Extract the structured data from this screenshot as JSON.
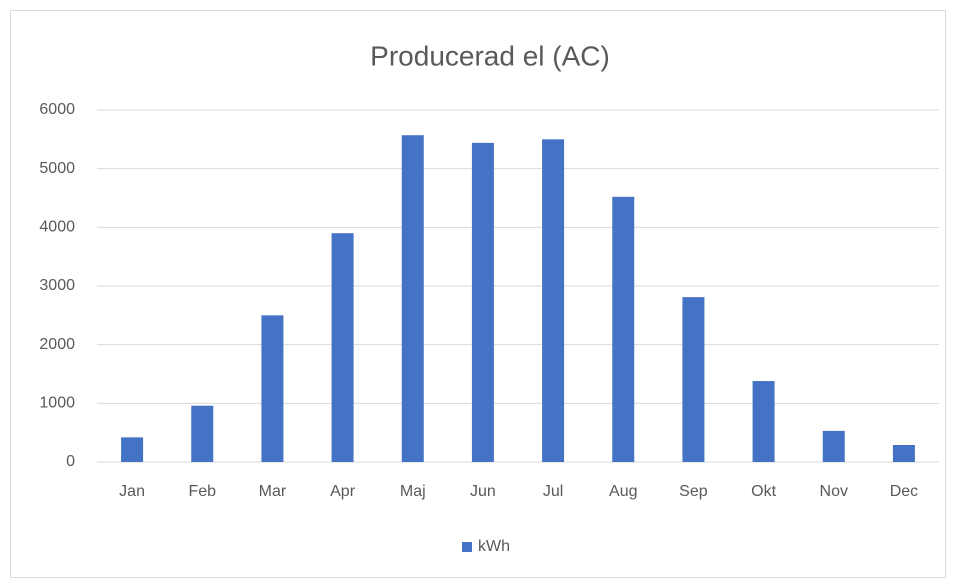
{
  "chart_data": {
    "type": "bar",
    "title": "Producerad el (AC)",
    "categories": [
      "Jan",
      "Feb",
      "Mar",
      "Apr",
      "Maj",
      "Jun",
      "Jul",
      "Aug",
      "Sep",
      "Okt",
      "Nov",
      "Dec"
    ],
    "series": [
      {
        "name": "kWh",
        "color": "#4472c4",
        "values": [
          420,
          960,
          2500,
          3900,
          5570,
          5440,
          5500,
          4520,
          2810,
          1380,
          530,
          290
        ]
      }
    ],
    "ylim": [
      0,
      6000
    ],
    "yticks": [
      0,
      1000,
      2000,
      3000,
      4000,
      5000,
      6000
    ],
    "grid": true,
    "legend": "bottom"
  }
}
